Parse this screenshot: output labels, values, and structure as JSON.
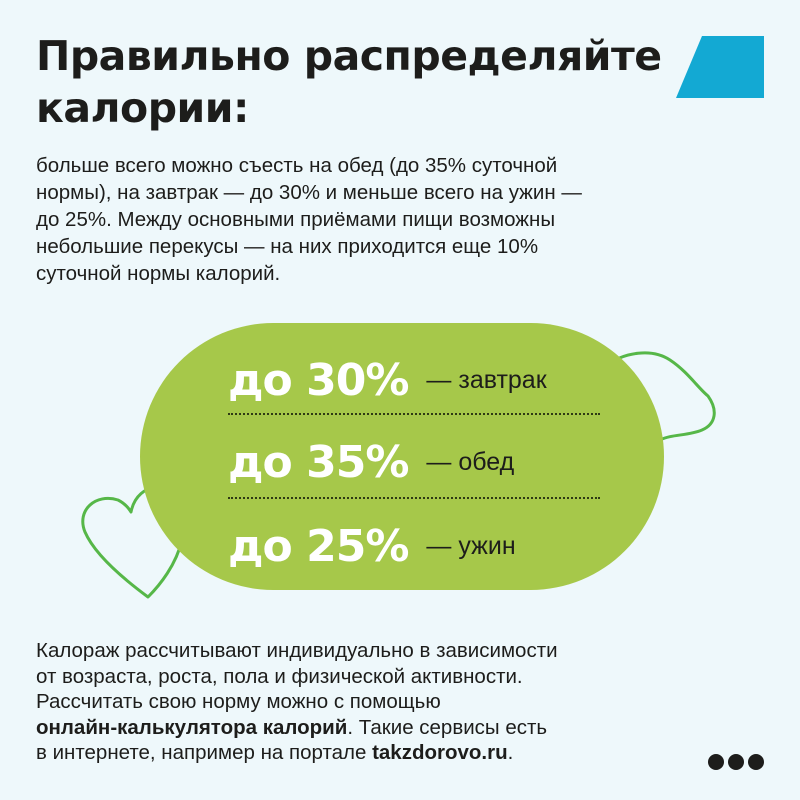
{
  "header": {
    "title_lines": [
      "Правильно распределяйте",
      "калории:"
    ]
  },
  "intro": {
    "lines": [
      "больше всего можно съесть на обед (до 35% суточной",
      "нормы), на завтрак — до 30% и меньше всего на ужин —",
      "до 25%. Между основными приёмами пищи возможны",
      "небольшие перекусы — на них приходится еще 10%",
      "суточной нормы калорий."
    ]
  },
  "meals": [
    {
      "percent": "до 30%",
      "label": "— завтрак"
    },
    {
      "percent": "до 35%",
      "label": "— обед"
    },
    {
      "percent": "до 25%",
      "label": "— ужин"
    }
  ],
  "outro": {
    "line1": "Калораж рассчитывают индивидуально в зависимости",
    "line2": "от возраста, роста, пола и физической активности.",
    "line3": "Рассчитать свою норму можно с помощью",
    "line4_bold": "онлайн-калькулятора калорий",
    "line4_rest": ". Такие сервисы есть",
    "line5_pre": "в интернете, например на портале ",
    "line5_bold": "takzdorovo.ru",
    "line5_post": "."
  },
  "colors": {
    "background": "#eef8fb",
    "pill": "#a6c84a",
    "outline": "#56b748",
    "logo": "#13a9d3",
    "text": "#1d1d1b",
    "percent_text": "#ffffff"
  },
  "icons": {
    "corner": "parallelogram-logo-icon",
    "more": "more-dots-icon"
  }
}
